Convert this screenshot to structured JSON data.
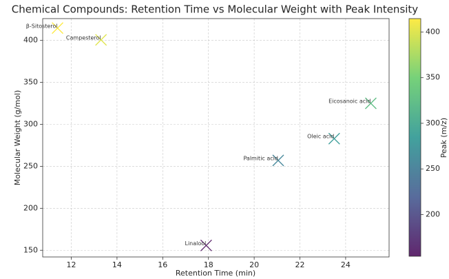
{
  "chart_data": {
    "type": "scatter",
    "title": "Chemical Compounds: Retention Time vs Molecular Weight with Peak Intensity",
    "xlabel": "Retention Time (min)",
    "ylabel": "Molecular Weight (g/mol)",
    "colorbar_label": "Peak (m/z)",
    "labels": [
      "β-Sitosterol",
      "Campesterol",
      "Eicosanoic acid",
      "Oleic acid",
      "Palmitic acid",
      "Linalool"
    ],
    "x": [
      11.4,
      13.3,
      25.1,
      23.5,
      21.05,
      17.9
    ],
    "y": [
      414.7,
      400.7,
      325,
      283,
      257,
      155.7
    ],
    "peak": [
      414.7,
      400.7,
      325,
      283,
      257,
      155.7
    ],
    "colormap": "viridis",
    "xlim": [
      10.75,
      25.9
    ],
    "ylim": [
      142,
      426
    ],
    "xticks": [
      12,
      14,
      16,
      18,
      20,
      22,
      24
    ],
    "yticks": [
      150,
      200,
      250,
      300,
      350,
      400
    ],
    "clim": [
      154.3,
      414.7
    ],
    "cticks": [
      200,
      250,
      300,
      350,
      400
    ],
    "grid": true
  }
}
